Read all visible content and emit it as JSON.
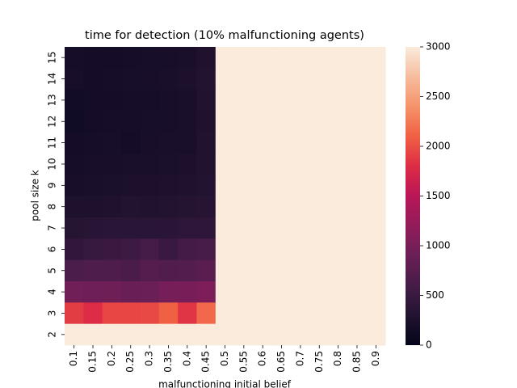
{
  "chart_data": {
    "type": "heatmap",
    "title": "time for detection (10% malfunctioning agents)",
    "x_label": "malfunctioning initial belief",
    "y_label": "pool size k",
    "x_categories": [
      "0.1",
      "0.15",
      "0.2",
      "0.25",
      "0.3",
      "0.35",
      "0.4",
      "0.45",
      "0.5",
      "0.55",
      "0.6",
      "0.65",
      "0.7",
      "0.75",
      "0.8",
      "0.85",
      "0.9"
    ],
    "y_categories": [
      15,
      14,
      13,
      12,
      11,
      10,
      9,
      8,
      7,
      6,
      5,
      4,
      3,
      2
    ],
    "values": [
      [
        180,
        170,
        170,
        180,
        190,
        200,
        220,
        280,
        3000,
        3000,
        3000,
        3000,
        3000,
        3000,
        3000,
        3000,
        3000
      ],
      [
        200,
        170,
        180,
        190,
        200,
        220,
        240,
        300,
        3000,
        3000,
        3000,
        3000,
        3000,
        3000,
        3000,
        3000,
        3000
      ],
      [
        150,
        170,
        170,
        180,
        180,
        200,
        220,
        290,
        3000,
        3000,
        3000,
        3000,
        3000,
        3000,
        3000,
        3000,
        3000
      ],
      [
        140,
        170,
        180,
        180,
        190,
        200,
        220,
        280,
        3000,
        3000,
        3000,
        3000,
        3000,
        3000,
        3000,
        3000,
        3000
      ],
      [
        170,
        180,
        190,
        170,
        200,
        210,
        220,
        290,
        3000,
        3000,
        3000,
        3000,
        3000,
        3000,
        3000,
        3000,
        3000
      ],
      [
        180,
        200,
        200,
        210,
        220,
        230,
        240,
        290,
        3000,
        3000,
        3000,
        3000,
        3000,
        3000,
        3000,
        3000,
        3000
      ],
      [
        200,
        210,
        230,
        240,
        240,
        260,
        270,
        310,
        3000,
        3000,
        3000,
        3000,
        3000,
        3000,
        3000,
        3000,
        3000
      ],
      [
        260,
        260,
        280,
        310,
        290,
        300,
        320,
        340,
        3000,
        3000,
        3000,
        3000,
        3000,
        3000,
        3000,
        3000,
        3000
      ],
      [
        330,
        350,
        360,
        360,
        360,
        380,
        390,
        390,
        3000,
        3000,
        3000,
        3000,
        3000,
        3000,
        3000,
        3000,
        3000
      ],
      [
        440,
        480,
        500,
        520,
        600,
        500,
        580,
        620,
        3000,
        3000,
        3000,
        3000,
        3000,
        3000,
        3000,
        3000,
        3000
      ],
      [
        650,
        670,
        680,
        640,
        720,
        700,
        710,
        760,
        3000,
        3000,
        3000,
        3000,
        3000,
        3000,
        3000,
        3000,
        3000
      ],
      [
        950,
        930,
        920,
        890,
        900,
        980,
        1000,
        1050,
        3000,
        3000,
        3000,
        3000,
        3000,
        3000,
        3000,
        3000,
        3000
      ],
      [
        1900,
        1800,
        1950,
        1950,
        1970,
        2100,
        1850,
        2150,
        3000,
        3000,
        3000,
        3000,
        3000,
        3000,
        3000,
        3000,
        3000
      ],
      [
        3000,
        3000,
        3000,
        3000,
        3000,
        3000,
        3000,
        3000,
        3000,
        3000,
        3000,
        3000,
        3000,
        3000,
        3000,
        3000,
        3000
      ]
    ],
    "colormap": "rocket",
    "colorbar_lim": [
      0,
      3000
    ],
    "colorbar_ticks": [
      0,
      500,
      1000,
      1500,
      2000,
      2500,
      3000
    ]
  }
}
